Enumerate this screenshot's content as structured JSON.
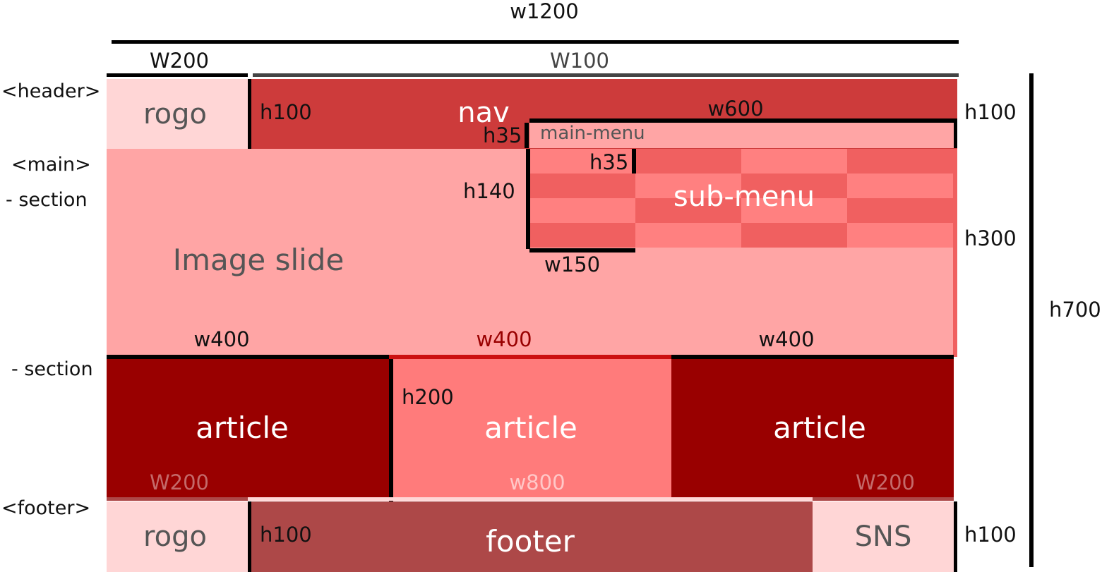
{
  "top": {
    "total_width": "w1200",
    "logo_width": "W200",
    "nav_width": "W100"
  },
  "header": {
    "side_label": "<header>",
    "logo": "rogo",
    "nav": "nav",
    "nav_height": "h100",
    "right_height": "h100",
    "main_menu": {
      "label": "main-menu",
      "width": "w600",
      "height": "h35"
    }
  },
  "main": {
    "side_label": "<main>",
    "section1_label": "- section",
    "image_slide": "Image slide",
    "height": "h300",
    "sub_menu": {
      "label": "sub-menu",
      "item_height": "h35",
      "height": "h140",
      "width": "w150"
    },
    "article_widths": [
      "w400",
      "w400",
      "w400"
    ],
    "section2_label": "- section",
    "articles": [
      {
        "label": "article"
      },
      {
        "label": "article"
      },
      {
        "label": "article"
      }
    ],
    "article_height": "h200"
  },
  "footer": {
    "side_label": "<footer>",
    "widths": [
      "W200",
      "w800",
      "W200"
    ],
    "logo": "rogo",
    "center": "footer",
    "center_height": "h100",
    "sns": "SNS",
    "right_height": "h100"
  },
  "total_height": "h700",
  "colors": {
    "logo_bg": "#ffd6d6",
    "nav_bg": "#cd3b3b",
    "slide_bg": "#ffa5a5",
    "submenu_light": "#ff8080",
    "submenu_dark": "#f06060",
    "article_dark": "#990000",
    "article_light": "#ff7b7b",
    "footer_bg": "#ad4848",
    "w400_red": "#990000"
  }
}
